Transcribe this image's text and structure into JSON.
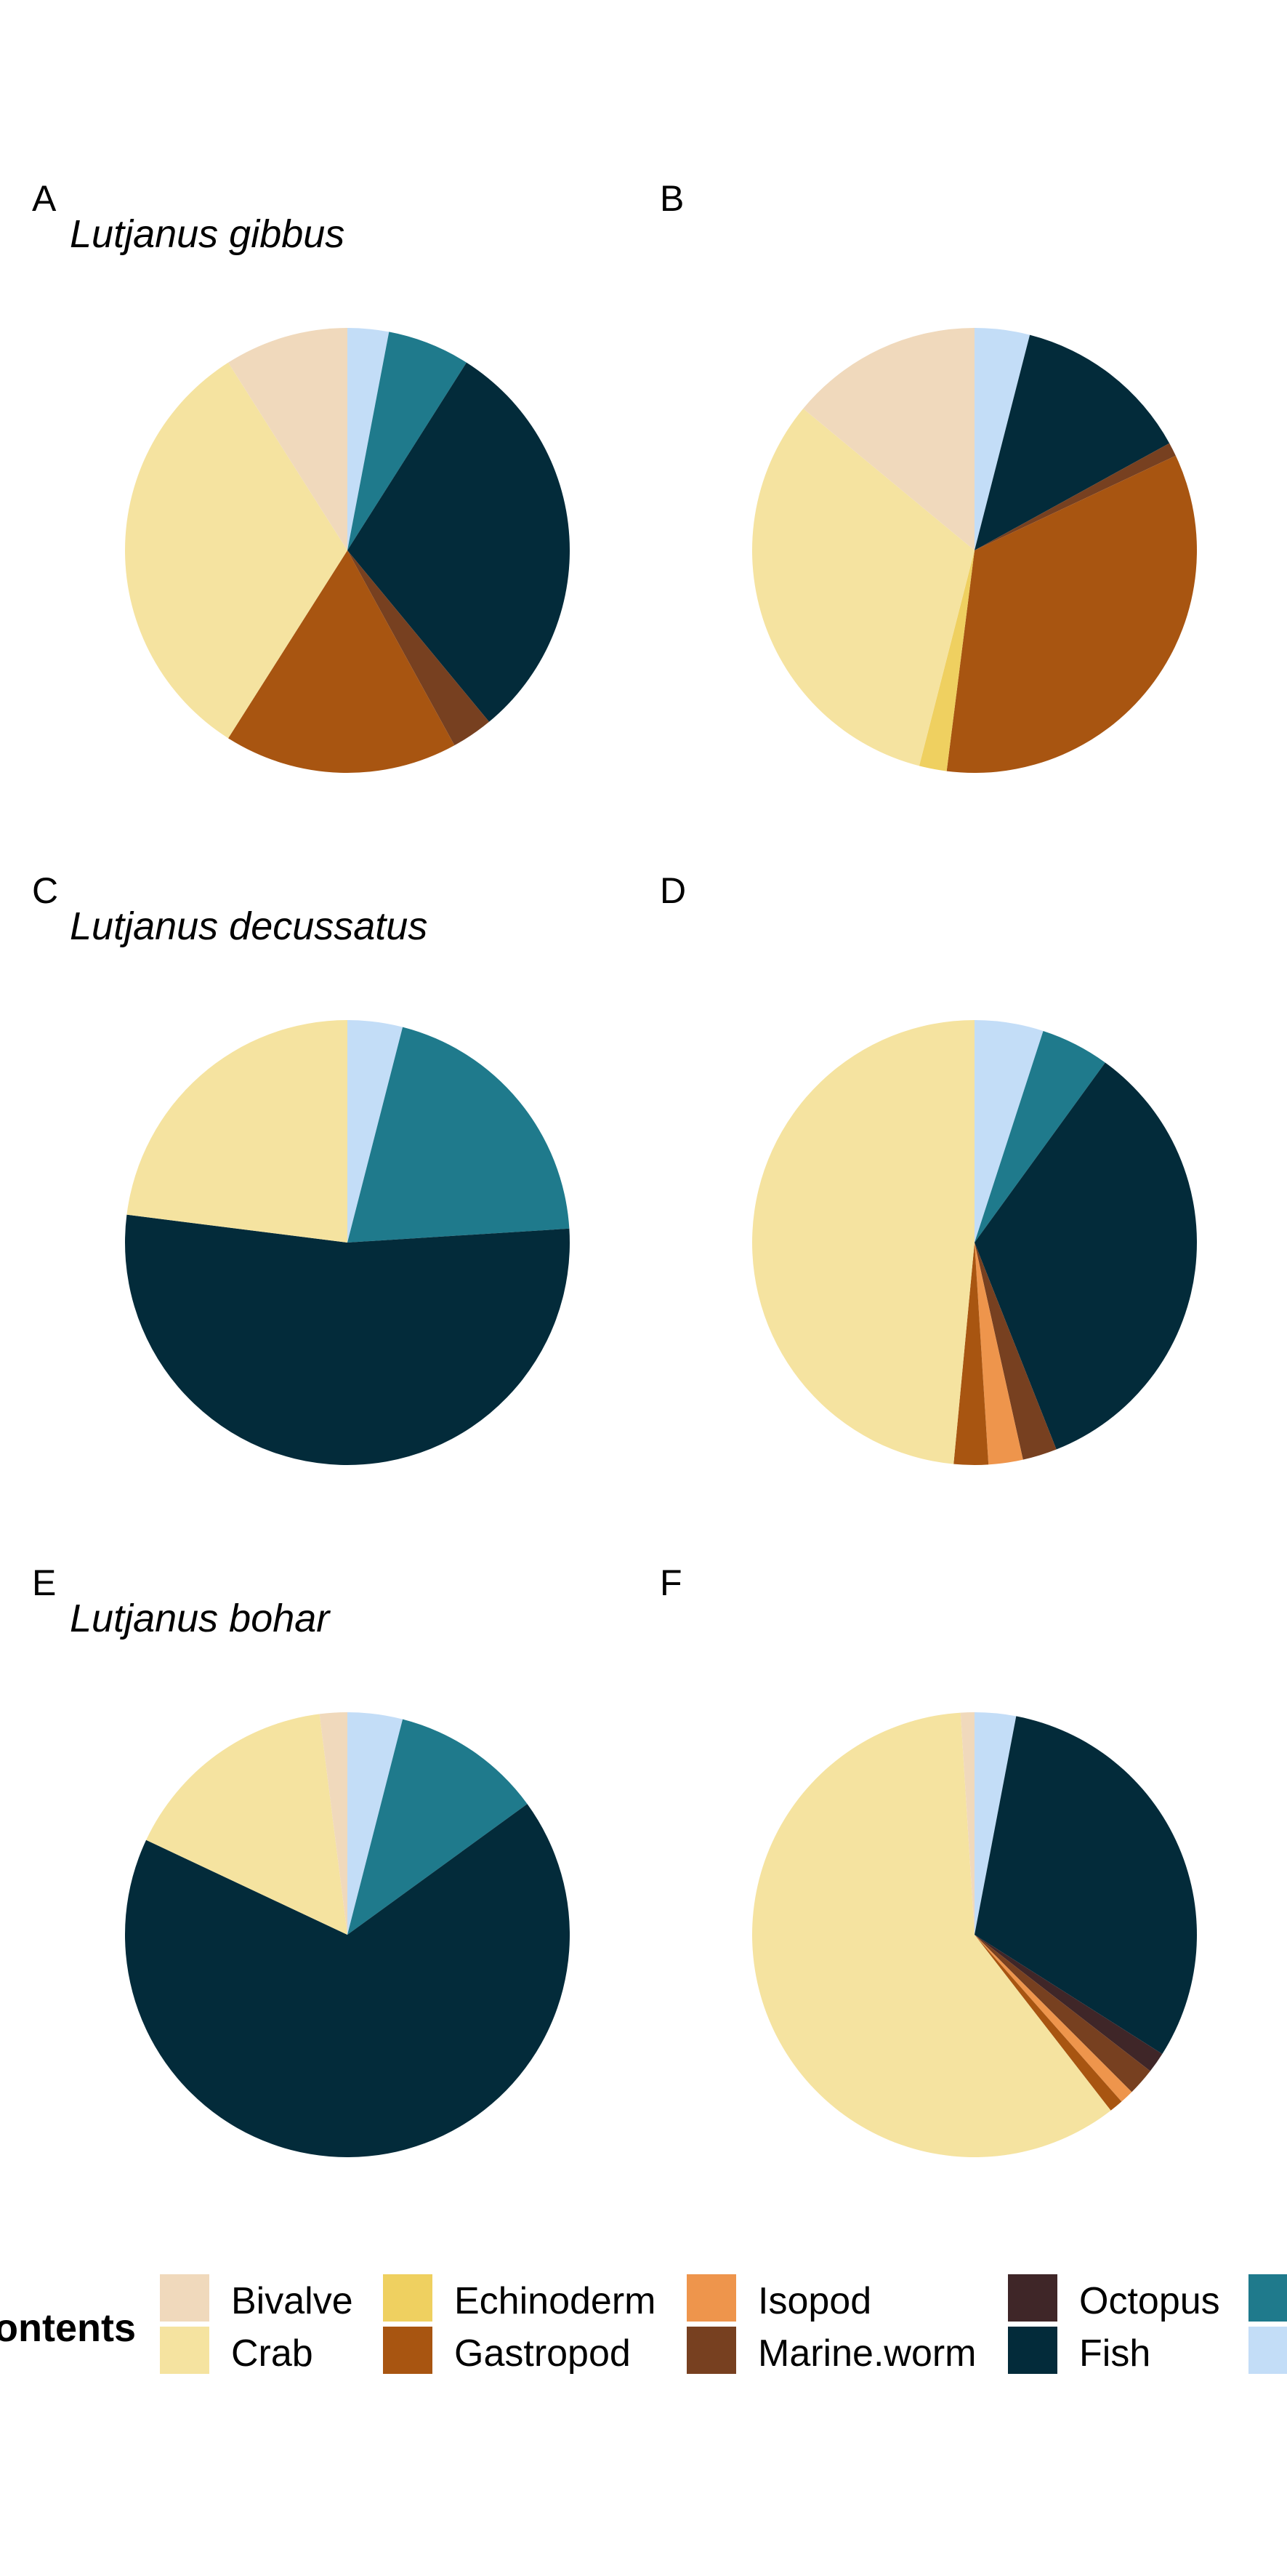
{
  "colors": {
    "Bivalve": "#F0D9BC",
    "Crab": "#F5E3A0",
    "Echinoderm": "#EFD060",
    "Gastropod": "#A85511",
    "Isopod": "#EE954C",
    "Marine.worm": "#774020",
    "Octopus": "#3F2628",
    "Fish": "#032B3A",
    "Teal": "#1F7A8C",
    "LightBlue": "#C3DDF7"
  },
  "legend": {
    "title": "ontents",
    "items": [
      {
        "label": "Bivalve",
        "key": "Bivalve"
      },
      {
        "label": "Crab",
        "key": "Crab"
      },
      {
        "label": "Echinoderm",
        "key": "Echinoderm"
      },
      {
        "label": "Gastropod",
        "key": "Gastropod"
      },
      {
        "label": "Isopod",
        "key": "Isopod"
      },
      {
        "label": "Marine.worm",
        "key": "Marine.worm"
      },
      {
        "label": "Octopus",
        "key": "Octopus"
      },
      {
        "label": "Fish",
        "key": "Fish"
      },
      {
        "label": "",
        "key": "Teal"
      },
      {
        "label": "",
        "key": "LightBlue"
      }
    ]
  },
  "chart_data": [
    {
      "type": "pie",
      "panel": "A",
      "title": "Lutjanus gibbus",
      "slices": [
        {
          "category": "LightBlue",
          "value": 3
        },
        {
          "category": "Teal",
          "value": 6
        },
        {
          "category": "Fish",
          "value": 30
        },
        {
          "category": "Marine.worm",
          "value": 3
        },
        {
          "category": "Gastropod",
          "value": 17
        },
        {
          "category": "Crab",
          "value": 32
        },
        {
          "category": "Bivalve",
          "value": 9
        }
      ]
    },
    {
      "type": "pie",
      "panel": "B",
      "title": "",
      "slices": [
        {
          "category": "LightBlue",
          "value": 4
        },
        {
          "category": "Fish",
          "value": 13
        },
        {
          "category": "Marine.worm",
          "value": 1
        },
        {
          "category": "Gastropod",
          "value": 34
        },
        {
          "category": "Echinoderm",
          "value": 2
        },
        {
          "category": "Crab",
          "value": 32
        },
        {
          "category": "Bivalve",
          "value": 14
        }
      ]
    },
    {
      "type": "pie",
      "panel": "C",
      "title": "Lutjanus decussatus",
      "slices": [
        {
          "category": "LightBlue",
          "value": 4
        },
        {
          "category": "Teal",
          "value": 20
        },
        {
          "category": "Fish",
          "value": 53
        },
        {
          "category": "Crab",
          "value": 23
        }
      ]
    },
    {
      "type": "pie",
      "panel": "D",
      "title": "",
      "slices": [
        {
          "category": "LightBlue",
          "value": 5
        },
        {
          "category": "Teal",
          "value": 5
        },
        {
          "category": "Fish",
          "value": 34
        },
        {
          "category": "Marine.worm",
          "value": 2.5
        },
        {
          "category": "Isopod",
          "value": 2.5
        },
        {
          "category": "Gastropod",
          "value": 2.5
        },
        {
          "category": "Crab",
          "value": 48.5
        }
      ]
    },
    {
      "type": "pie",
      "panel": "E",
      "title": "Lutjanus bohar",
      "slices": [
        {
          "category": "LightBlue",
          "value": 4
        },
        {
          "category": "Teal",
          "value": 11
        },
        {
          "category": "Fish",
          "value": 67
        },
        {
          "category": "Crab",
          "value": 16
        },
        {
          "category": "Bivalve",
          "value": 2
        }
      ]
    },
    {
      "type": "pie",
      "panel": "F",
      "title": "",
      "slices": [
        {
          "category": "LightBlue",
          "value": 3
        },
        {
          "category": "Fish",
          "value": 31
        },
        {
          "category": "Octopus",
          "value": 1.5
        },
        {
          "category": "Marine.worm",
          "value": 2
        },
        {
          "category": "Isopod",
          "value": 1
        },
        {
          "category": "Gastropod",
          "value": 1
        },
        {
          "category": "Crab",
          "value": 59.5
        },
        {
          "category": "Bivalve",
          "value": 1
        }
      ]
    }
  ]
}
